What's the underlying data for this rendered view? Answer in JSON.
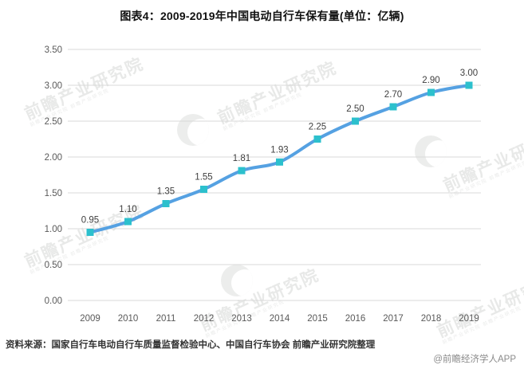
{
  "title": "图表4：2009-2019年中国电动自行车保有量(单位：亿辆)",
  "chart_data": {
    "type": "line",
    "title": "图表4：2009-2019年中国电动自行车保有量(单位：亿辆)",
    "categories": [
      "2009",
      "2010",
      "2011",
      "2012",
      "2013",
      "2014",
      "2015",
      "2016",
      "2017",
      "2018",
      "2019"
    ],
    "series": [
      {
        "name": "电动自行车保有量(亿辆)",
        "values": [
          0.95,
          1.1,
          1.35,
          1.55,
          1.81,
          1.93,
          2.25,
          2.5,
          2.7,
          2.9,
          3.0
        ],
        "data_labels": [
          "0.95",
          "1.10",
          "1.35",
          "1.55",
          "1.81",
          "1.93",
          "2.25",
          "2.50",
          "2.70",
          "2.90",
          "3.00"
        ]
      }
    ],
    "xlabel": "",
    "ylabel": "",
    "ylim": [
      0,
      3.5
    ],
    "yticks": [
      0,
      0.5,
      1.0,
      1.5,
      2.0,
      2.5,
      3.0,
      3.5
    ],
    "ytick_labels": [
      "0.00",
      "0.50",
      "1.00",
      "1.50",
      "2.00",
      "2.50",
      "3.00",
      "3.50"
    ],
    "grid": true,
    "legend": "none",
    "smooth": true,
    "colors": {
      "line": "#55a1e2",
      "marker": "#2cc0cd",
      "grid": "#d9d9d9",
      "axis_text": "#595959",
      "data_label_text": "#3f3f3f"
    }
  },
  "footer": {
    "source": "资料来源：国家自行车电动自行车质量监督检验中心、中国自行车协会 前瞻产业研究院整理",
    "copyright": "@前瞻经济学人APP"
  },
  "watermark": {
    "text": "前瞻产业研究院",
    "subtext": "前瞻产业研究院  前瞻产业研究院"
  }
}
